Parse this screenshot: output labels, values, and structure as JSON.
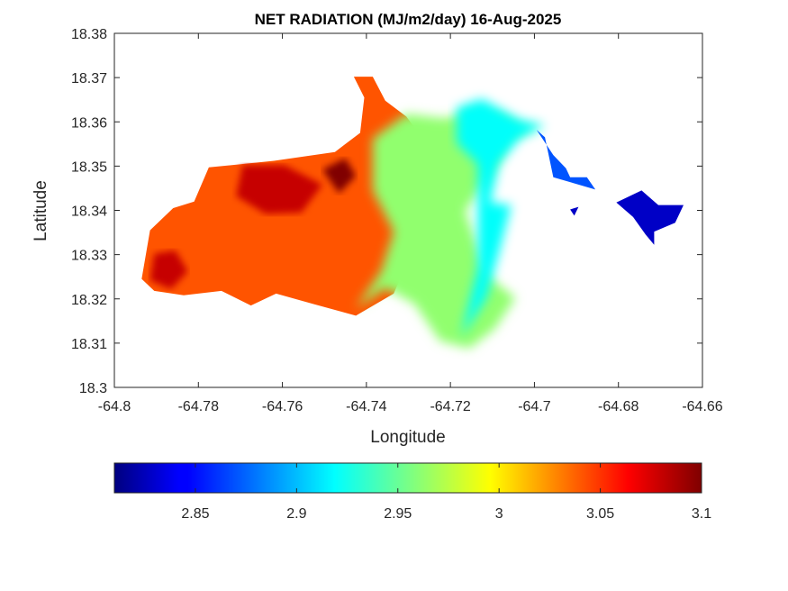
{
  "chart_data": {
    "type": "heatmap",
    "title": "NET RADIATION (MJ/m2/day) 16-Aug-2025",
    "xlabel": "Longitude",
    "ylabel": "Latitude",
    "xlim": [
      -64.8,
      -64.66
    ],
    "ylim": [
      18.3,
      18.38
    ],
    "xticks": [
      "-64.8",
      "-64.78",
      "-64.76",
      "-64.74",
      "-64.72",
      "-64.7",
      "-64.68",
      "-64.66"
    ],
    "yticks": [
      "18.3",
      "18.31",
      "18.32",
      "18.33",
      "18.34",
      "18.35",
      "18.36",
      "18.37",
      "18.38"
    ],
    "grid": false,
    "colormap": "jet",
    "colorbar": {
      "location": "bottom",
      "clim": [
        2.81,
        3.1
      ],
      "ticks": [
        "2.85",
        "2.9",
        "2.95",
        "3",
        "3.05",
        "3.1"
      ]
    },
    "regions": [
      {
        "name": "west",
        "value": 3.04,
        "polygon": [
          [
            -64.7935,
            18.3245
          ],
          [
            -64.7915,
            18.3355
          ],
          [
            -64.786,
            18.3405
          ],
          [
            -64.781,
            18.342
          ],
          [
            -64.7775,
            18.3497
          ],
          [
            -64.762,
            18.3512
          ],
          [
            -64.7475,
            18.3532
          ],
          [
            -64.7415,
            18.3575
          ],
          [
            -64.7405,
            18.3655
          ],
          [
            -64.743,
            18.3702
          ],
          [
            -64.7385,
            18.3702
          ],
          [
            -64.7355,
            18.3648
          ],
          [
            -64.7305,
            18.3612
          ],
          [
            -64.7255,
            18.3548
          ],
          [
            -64.7195,
            18.3485
          ],
          [
            -64.719,
            18.3398
          ],
          [
            -64.7285,
            18.3322
          ],
          [
            -64.7335,
            18.3212
          ],
          [
            -64.7425,
            18.3162
          ],
          [
            -64.7525,
            18.3188
          ],
          [
            -64.7615,
            18.3212
          ],
          [
            -64.7675,
            18.3185
          ],
          [
            -64.7745,
            18.3218
          ],
          [
            -64.7835,
            18.3208
          ],
          [
            -64.7905,
            18.3218
          ]
        ]
      },
      {
        "name": "west-core-1",
        "value": 3.08,
        "polygon": [
          [
            -64.771,
            18.3432
          ],
          [
            -64.7695,
            18.3502
          ],
          [
            -64.7595,
            18.3502
          ],
          [
            -64.7505,
            18.3458
          ],
          [
            -64.7555,
            18.3395
          ],
          [
            -64.764,
            18.3392
          ]
        ]
      },
      {
        "name": "west-core-2",
        "value": 3.1,
        "polygon": [
          [
            -64.7505,
            18.3492
          ],
          [
            -64.745,
            18.3518
          ],
          [
            -64.7425,
            18.3478
          ],
          [
            -64.7465,
            18.3438
          ]
        ]
      },
      {
        "name": "west-core-3",
        "value": 3.08,
        "polygon": [
          [
            -64.7915,
            18.3242
          ],
          [
            -64.7905,
            18.3302
          ],
          [
            -64.7855,
            18.331
          ],
          [
            -64.7825,
            18.3262
          ],
          [
            -64.7865,
            18.3222
          ]
        ]
      },
      {
        "name": "central",
        "value": 2.96,
        "polygon": [
          [
            -64.7385,
            18.3562
          ],
          [
            -64.7305,
            18.3618
          ],
          [
            -64.7215,
            18.3608
          ],
          [
            -64.7145,
            18.3622
          ],
          [
            -64.7085,
            18.3615
          ],
          [
            -64.7025,
            18.3585
          ],
          [
            -64.6985,
            18.3592
          ],
          [
            -64.7065,
            18.3562
          ],
          [
            -64.7085,
            18.3512
          ],
          [
            -64.7125,
            18.3452
          ],
          [
            -64.7165,
            18.3398
          ],
          [
            -64.7135,
            18.3318
          ],
          [
            -64.7115,
            18.3255
          ],
          [
            -64.7045,
            18.3202
          ],
          [
            -64.7095,
            18.3132
          ],
          [
            -64.7155,
            18.3088
          ],
          [
            -64.7225,
            18.3105
          ],
          [
            -64.7285,
            18.3188
          ],
          [
            -64.7355,
            18.3225
          ],
          [
            -64.7425,
            18.3178
          ],
          [
            -64.7365,
            18.3262
          ],
          [
            -64.7335,
            18.3352
          ],
          [
            -64.7385,
            18.3445
          ]
        ]
      },
      {
        "name": "central-east",
        "value": 2.92,
        "polygon": [
          [
            -64.7185,
            18.3632
          ],
          [
            -64.7125,
            18.3652
          ],
          [
            -64.7035,
            18.3605
          ],
          [
            -64.6975,
            18.3592
          ],
          [
            -64.7035,
            18.3562
          ],
          [
            -64.7085,
            18.3505
          ],
          [
            -64.7105,
            18.3418
          ],
          [
            -64.7055,
            18.3412
          ],
          [
            -64.7085,
            18.3302
          ],
          [
            -64.7115,
            18.3202
          ],
          [
            -64.7175,
            18.3112
          ],
          [
            -64.7135,
            18.3268
          ],
          [
            -64.7135,
            18.3402
          ],
          [
            -64.7135,
            18.3505
          ],
          [
            -64.7185,
            18.3552
          ]
        ]
      },
      {
        "name": "east-strip",
        "value": 2.87,
        "polygon": [
          [
            -64.6995,
            18.3582
          ],
          [
            -64.6955,
            18.3525
          ],
          [
            -64.6925,
            18.3495
          ],
          [
            -64.6915,
            18.3475
          ],
          [
            -64.6875,
            18.3475
          ],
          [
            -64.6855,
            18.3447
          ],
          [
            -64.6955,
            18.3475
          ],
          [
            -64.6975,
            18.3565
          ]
        ]
      },
      {
        "name": "east-island",
        "value": 2.83,
        "polygon": [
          [
            -64.6805,
            18.3418
          ],
          [
            -64.6745,
            18.3445
          ],
          [
            -64.6705,
            18.3412
          ],
          [
            -64.6645,
            18.3412
          ],
          [
            -64.6665,
            18.3372
          ],
          [
            -64.6715,
            18.3352
          ],
          [
            -64.6715,
            18.3322
          ],
          [
            -64.6735,
            18.3345
          ],
          [
            -64.6765,
            18.3385
          ]
        ]
      },
      {
        "name": "east-islet",
        "value": 2.83,
        "polygon": [
          [
            -64.6915,
            18.3402
          ],
          [
            -64.6895,
            18.3408
          ],
          [
            -64.6905,
            18.3388
          ]
        ]
      }
    ]
  }
}
